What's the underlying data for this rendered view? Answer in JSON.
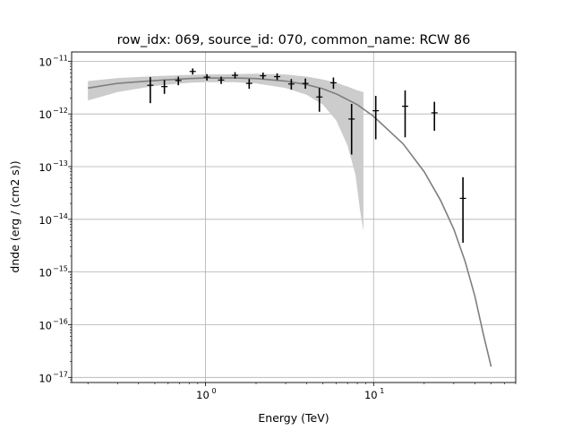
{
  "chart_data": {
    "type": "scatter",
    "title": "row_idx: 069, source_id: 070, common_name: RCW 86",
    "xlabel": "Energy (TeV)",
    "ylabel": "dnde (erg / (cm2 s))",
    "xscale": "log",
    "yscale": "log",
    "xlim": [
      0.16,
      70
    ],
    "ylim": [
      8e-18,
      1.5e-11
    ],
    "grid": true,
    "x_ticks": [
      {
        "value": 1,
        "base": "10",
        "exp": "0"
      },
      {
        "value": 10,
        "base": "10",
        "exp": "1"
      }
    ],
    "y_ticks": [
      {
        "value": 1e-17,
        "base": "10",
        "exp": "−17"
      },
      {
        "value": 1e-16,
        "base": "10",
        "exp": "−16"
      },
      {
        "value": 1e-15,
        "base": "10",
        "exp": "−15"
      },
      {
        "value": 1e-14,
        "base": "10",
        "exp": "−14"
      },
      {
        "value": 1e-13,
        "base": "10",
        "exp": "−13"
      },
      {
        "value": 1e-12,
        "base": "10",
        "exp": "−12"
      },
      {
        "value": 1e-11,
        "base": "10",
        "exp": "−11"
      }
    ],
    "model_curve": {
      "color": "#7f7f7f",
      "points": [
        [
          0.2,
          3.1e-12
        ],
        [
          0.3,
          3.8e-12
        ],
        [
          0.5,
          4.3e-12
        ],
        [
          0.8,
          4.7e-12
        ],
        [
          1.0,
          4.8e-12
        ],
        [
          1.5,
          4.8e-12
        ],
        [
          2.0,
          4.7e-12
        ],
        [
          3.0,
          4.2e-12
        ],
        [
          4.0,
          3.6e-12
        ],
        [
          5.0,
          3e-12
        ],
        [
          6.0,
          2.4e-12
        ],
        [
          8.0,
          1.5e-12
        ],
        [
          10.0,
          9e-13
        ],
        [
          15.0,
          2.7e-13
        ],
        [
          20.0,
          8e-14
        ],
        [
          25.0,
          2.3e-14
        ],
        [
          30.0,
          6.5e-15
        ],
        [
          35.0,
          1.6e-15
        ],
        [
          40.0,
          3.5e-16
        ],
        [
          45.0,
          6.5e-17
        ],
        [
          50.0,
          1.6e-17
        ]
      ]
    },
    "confidence_band": {
      "color": "#cccccc",
      "upper": [
        [
          0.2,
          4.2e-12
        ],
        [
          0.3,
          4.8e-12
        ],
        [
          0.5,
          5.2e-12
        ],
        [
          0.8,
          5.5e-12
        ],
        [
          1.0,
          5.6e-12
        ],
        [
          1.5,
          5.7e-12
        ],
        [
          2.0,
          5.8e-12
        ],
        [
          3.0,
          5.6e-12
        ],
        [
          4.0,
          5.1e-12
        ],
        [
          5.0,
          4.5e-12
        ],
        [
          6.0,
          3.9e-12
        ],
        [
          7.0,
          3.3e-12
        ],
        [
          8.0,
          2.8e-12
        ],
        [
          8.7,
          2.6e-12
        ]
      ],
      "lower": [
        [
          0.2,
          1.8e-12
        ],
        [
          0.3,
          2.6e-12
        ],
        [
          0.5,
          3.4e-12
        ],
        [
          0.8,
          3.9e-12
        ],
        [
          1.0,
          4e-12
        ],
        [
          1.5,
          4e-12
        ],
        [
          2.0,
          3.8e-12
        ],
        [
          3.0,
          3.1e-12
        ],
        [
          4.0,
          2.3e-12
        ],
        [
          5.0,
          1.5e-12
        ],
        [
          6.0,
          7.5e-13
        ],
        [
          7.0,
          2.5e-13
        ],
        [
          7.8,
          7e-14
        ],
        [
          8.3,
          1.5e-14
        ],
        [
          8.7,
          6e-15
        ]
      ]
    },
    "flux_points": {
      "color": "#000000",
      "points": [
        {
          "x": 0.47,
          "y": 3.5e-12,
          "ylo": 1.6e-12,
          "yhi": 5e-12
        },
        {
          "x": 0.57,
          "y": 3.3e-12,
          "ylo": 2.4e-12,
          "yhi": 4.4e-12
        },
        {
          "x": 0.69,
          "y": 4.3e-12,
          "ylo": 3.5e-12,
          "yhi": 5.1e-12
        },
        {
          "x": 0.84,
          "y": 6.4e-12,
          "ylo": 5.6e-12,
          "yhi": 7.3e-12
        },
        {
          "x": 1.02,
          "y": 5e-12,
          "ylo": 4.3e-12,
          "yhi": 5.7e-12
        },
        {
          "x": 1.24,
          "y": 4.4e-12,
          "ylo": 3.7e-12,
          "yhi": 5.1e-12
        },
        {
          "x": 1.5,
          "y": 5.4e-12,
          "ylo": 4.7e-12,
          "yhi": 6.2e-12
        },
        {
          "x": 1.82,
          "y": 3.8e-12,
          "ylo": 3e-12,
          "yhi": 4.6e-12
        },
        {
          "x": 2.2,
          "y": 5.3e-12,
          "ylo": 4.6e-12,
          "yhi": 6.1e-12
        },
        {
          "x": 2.67,
          "y": 5.1e-12,
          "ylo": 4.4e-12,
          "yhi": 5.9e-12
        },
        {
          "x": 3.24,
          "y": 3.7e-12,
          "ylo": 2.9e-12,
          "yhi": 4.6e-12
        },
        {
          "x": 3.93,
          "y": 3.8e-12,
          "ylo": 3e-12,
          "yhi": 4.7e-12
        },
        {
          "x": 4.76,
          "y": 2.1e-12,
          "ylo": 1.1e-12,
          "yhi": 3.1e-12
        },
        {
          "x": 5.77,
          "y": 3.9e-12,
          "ylo": 3e-12,
          "yhi": 4.9e-12
        },
        {
          "x": 7.4,
          "y": 8e-13,
          "ylo": 1.7e-13,
          "yhi": 1.55e-12
        },
        {
          "x": 10.3,
          "y": 1.15e-12,
          "ylo": 3.3e-13,
          "yhi": 2.2e-12
        },
        {
          "x": 15.4,
          "y": 1.4e-12,
          "ylo": 3.6e-13,
          "yhi": 2.8e-12
        },
        {
          "x": 23.0,
          "y": 1.05e-12,
          "ylo": 4.8e-13,
          "yhi": 1.7e-12
        },
        {
          "x": 34.0,
          "y": 2.5e-14,
          "ylo": 3.6e-15,
          "yhi": 6.3e-14
        }
      ]
    }
  }
}
